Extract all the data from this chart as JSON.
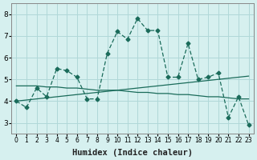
{
  "xlabel": "Humidex (Indice chaleur)",
  "ylabel": "",
  "bg_color": "#d6f0ef",
  "grid_color": "#b0d8d8",
  "line_color": "#1a6b5a",
  "x_values": [
    0,
    1,
    2,
    3,
    4,
    5,
    6,
    7,
    8,
    9,
    10,
    11,
    12,
    13,
    14,
    15,
    16,
    17,
    18,
    19,
    20,
    21,
    22,
    23
  ],
  "series1": [
    4.0,
    3.7,
    4.6,
    4.2,
    5.5,
    5.4,
    5.1,
    4.1,
    4.1,
    6.2,
    7.2,
    6.85,
    7.8,
    7.25,
    7.25,
    5.1,
    5.1,
    6.65,
    5.0,
    5.1,
    5.3,
    3.25,
    4.2,
    2.9
  ],
  "series2_slope": [
    4.7,
    4.7,
    4.7,
    4.65,
    4.65,
    4.6,
    4.6,
    4.55,
    4.5,
    4.5,
    4.5,
    4.45,
    4.4,
    4.4,
    4.35,
    4.35,
    4.3,
    4.3,
    4.25,
    4.2,
    4.2,
    4.15,
    4.1,
    4.1
  ],
  "series3_slope": [
    4.0,
    4.05,
    4.1,
    4.15,
    4.2,
    4.25,
    4.3,
    4.35,
    4.4,
    4.45,
    4.5,
    4.55,
    4.6,
    4.65,
    4.7,
    4.75,
    4.8,
    4.85,
    4.9,
    4.95,
    5.0,
    5.05,
    5.1,
    5.15
  ],
  "ylim": [
    2.5,
    8.5
  ],
  "xlim": [
    -0.5,
    23.5
  ],
  "yticks": [
    3,
    4,
    5,
    6,
    7,
    8
  ],
  "xtick_labels": [
    "0",
    "1",
    "2",
    "3",
    "4",
    "5",
    "6",
    "7",
    "8",
    "9",
    "10",
    "11",
    "12",
    "13",
    "14",
    "15",
    "16",
    "17",
    "18",
    "19",
    "20",
    "21",
    "22",
    "23"
  ]
}
